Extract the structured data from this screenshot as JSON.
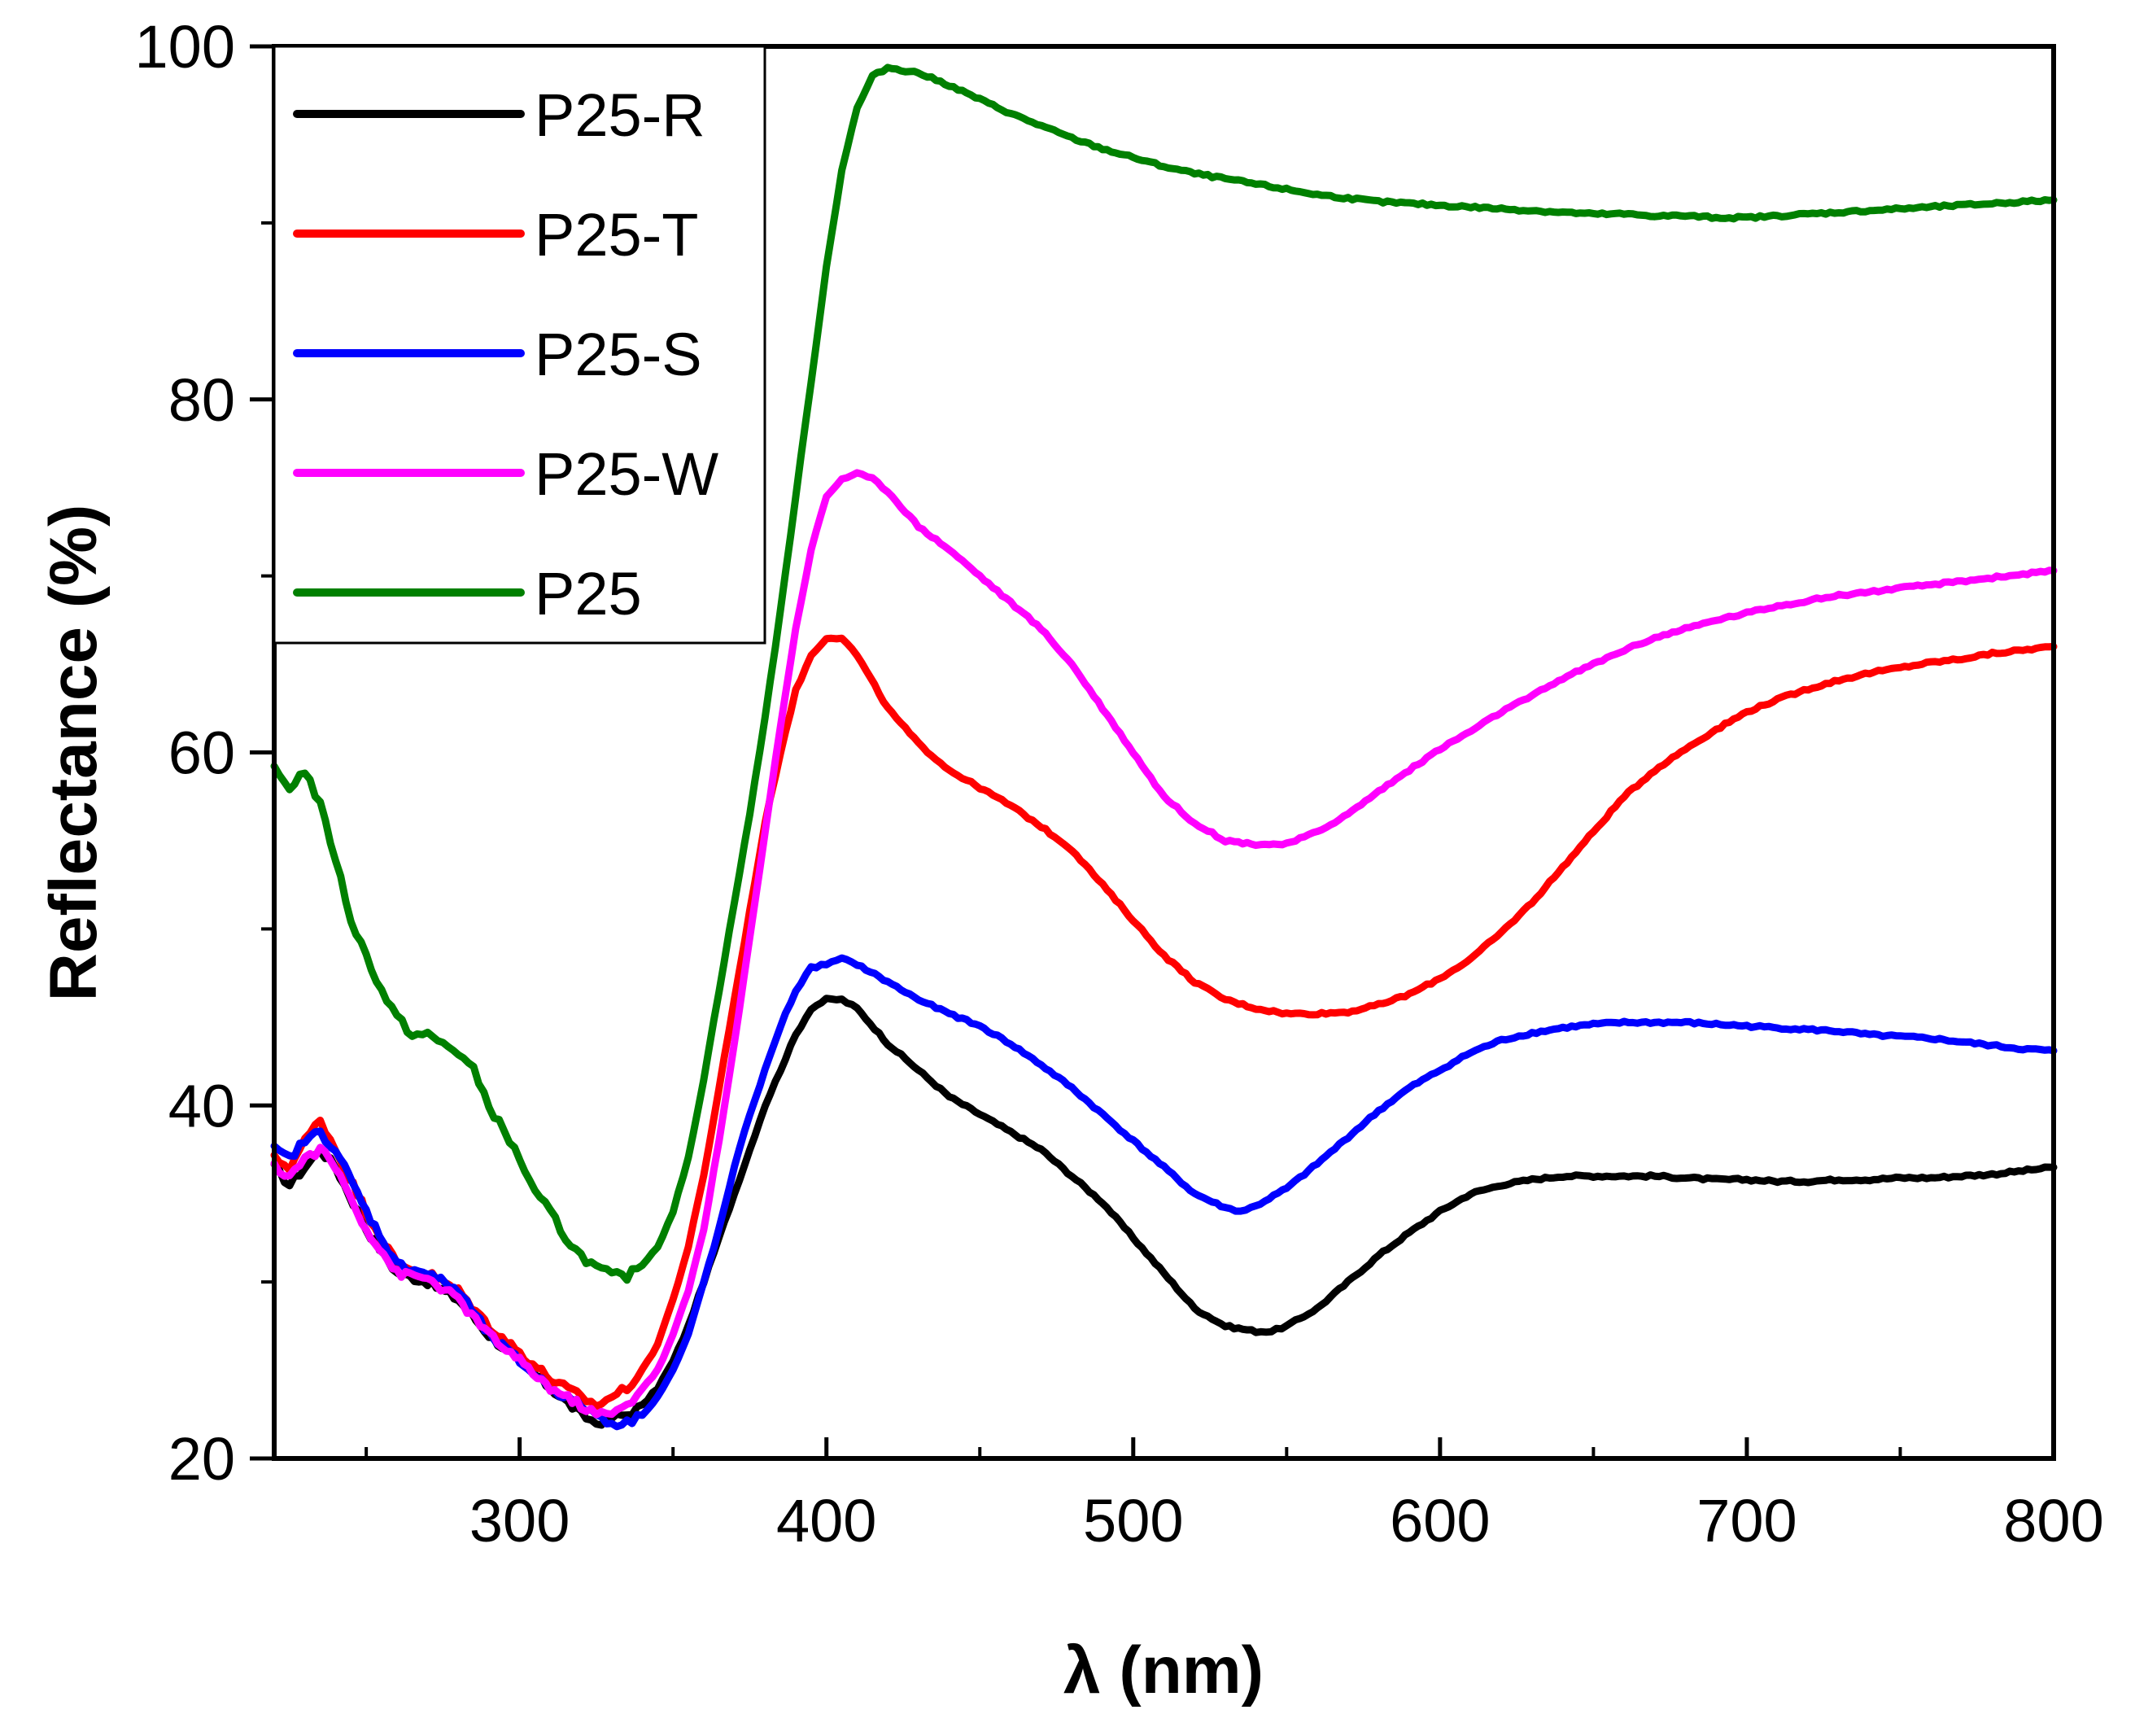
{
  "chart_data": {
    "type": "line",
    "xlabel": "λ (nm)",
    "ylabel": "Reflectance (%)",
    "xlim": [
      220,
      800
    ],
    "ylim": [
      20,
      100
    ],
    "xticks_major": [
      300,
      400,
      500,
      600,
      700,
      800
    ],
    "xticks_minor": [
      250,
      350,
      450,
      550,
      650,
      750
    ],
    "yticks_major": [
      20,
      40,
      60,
      80,
      100
    ],
    "yticks_minor": [
      30,
      50,
      70,
      90
    ],
    "legend_position": "top-left",
    "series": [
      {
        "name": "P25-R",
        "color": "#000000",
        "x": [
          220,
          225,
          230,
          235,
          240,
          250,
          260,
          270,
          280,
          290,
          300,
          310,
          320,
          325,
          330,
          335,
          340,
          345,
          350,
          355,
          360,
          365,
          370,
          375,
          380,
          385,
          390,
          395,
          400,
          405,
          410,
          420,
          430,
          440,
          450,
          460,
          470,
          480,
          490,
          500,
          510,
          520,
          530,
          540,
          545,
          550,
          560,
          570,
          580,
          590,
          600,
          610,
          620,
          630,
          640,
          650,
          660,
          670,
          680,
          690,
          700,
          710,
          720,
          730,
          740,
          750,
          760,
          770,
          780,
          790,
          800
        ],
        "y": [
          36.5,
          35.5,
          36.5,
          37.5,
          36.5,
          33,
          30.5,
          30,
          29,
          27,
          25.5,
          24,
          22.5,
          22,
          22.3,
          22.5,
          23,
          24,
          25.5,
          27.5,
          30,
          32.5,
          35,
          37.5,
          40,
          42,
          44,
          45.5,
          46,
          46,
          45.5,
          43.5,
          42,
          40.5,
          39.5,
          38.5,
          37.5,
          36,
          34.5,
          32.5,
          30.5,
          28.5,
          27.5,
          27.2,
          27.2,
          27.5,
          28.5,
          30,
          31.5,
          32.8,
          34,
          35,
          35.5,
          35.8,
          36,
          36,
          36,
          36,
          35.9,
          35.8,
          35.8,
          35.7,
          35.7,
          35.8,
          35.8,
          35.9,
          35.9,
          36,
          36.1,
          36.3,
          36.5
        ]
      },
      {
        "name": "P25-T",
        "color": "#ff0000",
        "x": [
          220,
          225,
          230,
          235,
          240,
          250,
          260,
          270,
          280,
          290,
          300,
          310,
          320,
          325,
          330,
          335,
          340,
          345,
          350,
          355,
          360,
          365,
          370,
          375,
          380,
          385,
          390,
          395,
          400,
          405,
          410,
          420,
          430,
          440,
          450,
          460,
          470,
          480,
          490,
          500,
          510,
          520,
          530,
          540,
          550,
          560,
          570,
          580,
          590,
          600,
          610,
          620,
          630,
          640,
          650,
          660,
          670,
          680,
          690,
          700,
          710,
          720,
          730,
          740,
          750,
          760,
          770,
          780,
          790,
          800
        ],
        "y": [
          37,
          36.5,
          38,
          39.2,
          37.5,
          34,
          31,
          30.5,
          29.5,
          27.5,
          26,
          24.5,
          23.5,
          23,
          23.5,
          24,
          25,
          26.5,
          29,
          32,
          36,
          41,
          46,
          51,
          56,
          60,
          63.5,
          65.5,
          66.5,
          66.5,
          65.5,
          62.5,
          60.5,
          59,
          58,
          57,
          55.8,
          54.5,
          52.5,
          50.5,
          48.5,
          47,
          46,
          45.5,
          45.2,
          45.2,
          45.3,
          45.7,
          46.3,
          47.2,
          48.3,
          49.8,
          51.5,
          53.5,
          55.5,
          57.5,
          59,
          60.2,
          61.3,
          62.3,
          63,
          63.6,
          64.1,
          64.5,
          64.8,
          65.1,
          65.3,
          65.6,
          65.8,
          66
        ]
      },
      {
        "name": "P25-S",
        "color": "#0000ff",
        "x": [
          220,
          225,
          230,
          235,
          240,
          250,
          260,
          270,
          280,
          290,
          300,
          310,
          320,
          325,
          330,
          335,
          340,
          345,
          350,
          355,
          360,
          365,
          370,
          375,
          380,
          385,
          390,
          395,
          400,
          405,
          410,
          420,
          430,
          440,
          450,
          460,
          470,
          480,
          490,
          500,
          510,
          520,
          530,
          535,
          540,
          550,
          560,
          570,
          580,
          590,
          600,
          610,
          620,
          630,
          640,
          650,
          660,
          670,
          680,
          690,
          700,
          710,
          720,
          730,
          740,
          750,
          760,
          770,
          780,
          790,
          800
        ],
        "y": [
          37.5,
          37,
          38,
          38.5,
          37.5,
          34,
          31,
          30.5,
          29.5,
          27,
          25.5,
          24,
          23,
          22.5,
          22,
          22,
          22.5,
          23.5,
          25,
          27,
          30,
          33,
          36.5,
          39.5,
          42,
          44.5,
          46.5,
          47.8,
          48,
          48.3,
          48,
          47,
          46,
          45.2,
          44.5,
          43.5,
          42.3,
          41,
          39.5,
          38,
          36.5,
          35,
          34.2,
          34,
          34.3,
          35.3,
          36.7,
          38.2,
          39.7,
          41,
          42,
          43,
          43.7,
          44.1,
          44.4,
          44.6,
          44.7,
          44.7,
          44.7,
          44.6,
          44.5,
          44.4,
          44.3,
          44.2,
          44,
          43.9,
          43.8,
          43.6,
          43.4,
          43.2,
          43.1
        ]
      },
      {
        "name": "P25-W",
        "color": "#ff00ff",
        "x": [
          220,
          225,
          230,
          235,
          240,
          250,
          260,
          270,
          280,
          290,
          300,
          310,
          320,
          325,
          330,
          335,
          340,
          345,
          350,
          355,
          360,
          365,
          370,
          375,
          380,
          385,
          390,
          395,
          400,
          405,
          410,
          415,
          420,
          430,
          440,
          450,
          460,
          470,
          480,
          490,
          500,
          510,
          520,
          530,
          540,
          550,
          560,
          570,
          580,
          590,
          600,
          610,
          620,
          630,
          640,
          650,
          660,
          670,
          680,
          690,
          700,
          710,
          720,
          730,
          740,
          750,
          760,
          770,
          780,
          790,
          800
        ],
        "y": [
          36.5,
          36,
          37,
          37.5,
          36.5,
          33,
          30.5,
          30.2,
          29,
          27,
          25.5,
          24,
          23,
          22.5,
          22.5,
          23,
          24,
          25,
          27,
          29.5,
          33,
          38,
          43.5,
          49.5,
          55.5,
          61.5,
          67,
          71.5,
          74.5,
          75.5,
          75.8,
          75.5,
          74.8,
          72.8,
          71.5,
          70,
          68.5,
          67,
          65,
          62.5,
          60,
          57.5,
          56,
          55,
          54.8,
          54.8,
          55.5,
          56.5,
          57.8,
          59,
          60.2,
          61.2,
          62.3,
          63.2,
          64.2,
          65,
          65.8,
          66.5,
          67,
          67.5,
          67.9,
          68.3,
          68.6,
          68.9,
          69.1,
          69.3,
          69.5,
          69.7,
          69.9,
          70.1,
          70.3
        ]
      },
      {
        "name": "P25",
        "color": "#008000",
        "x": [
          220,
          225,
          230,
          235,
          240,
          245,
          250,
          255,
          260,
          265,
          270,
          275,
          280,
          285,
          290,
          295,
          300,
          305,
          310,
          315,
          320,
          325,
          330,
          335,
          340,
          345,
          350,
          355,
          360,
          365,
          370,
          375,
          380,
          385,
          390,
          395,
          400,
          405,
          410,
          415,
          420,
          430,
          440,
          450,
          460,
          470,
          480,
          490,
          500,
          510,
          520,
          530,
          540,
          550,
          560,
          570,
          580,
          590,
          600,
          610,
          620,
          630,
          640,
          650,
          660,
          670,
          680,
          690,
          700,
          710,
          720,
          730,
          740,
          750,
          760,
          770,
          780,
          790,
          800
        ],
        "y": [
          59,
          58,
          59,
          57,
          54,
          50.5,
          48.5,
          46.5,
          45,
          44,
          44,
          43.5,
          43,
          42,
          40,
          38.5,
          37,
          35,
          34,
          32.5,
          31.5,
          30.8,
          30.4,
          30.3,
          31,
          32,
          34,
          37,
          41.5,
          46.5,
          51.5,
          56.5,
          62,
          68,
          74.5,
          81,
          87.5,
          93,
          96.5,
          98.3,
          98.8,
          98.5,
          97.8,
          97,
          96.2,
          95.5,
          94.8,
          94.2,
          93.7,
          93.2,
          92.8,
          92.5,
          92.2,
          91.9,
          91.6,
          91.4,
          91.2,
          91.1,
          91,
          90.9,
          90.8,
          90.7,
          90.6,
          90.5,
          90.5,
          90.4,
          90.4,
          90.3,
          90.3,
          90.4,
          90.5,
          90.6,
          90.7,
          90.8,
          90.9,
          91,
          91.1,
          91.2,
          91.3
        ]
      }
    ]
  }
}
